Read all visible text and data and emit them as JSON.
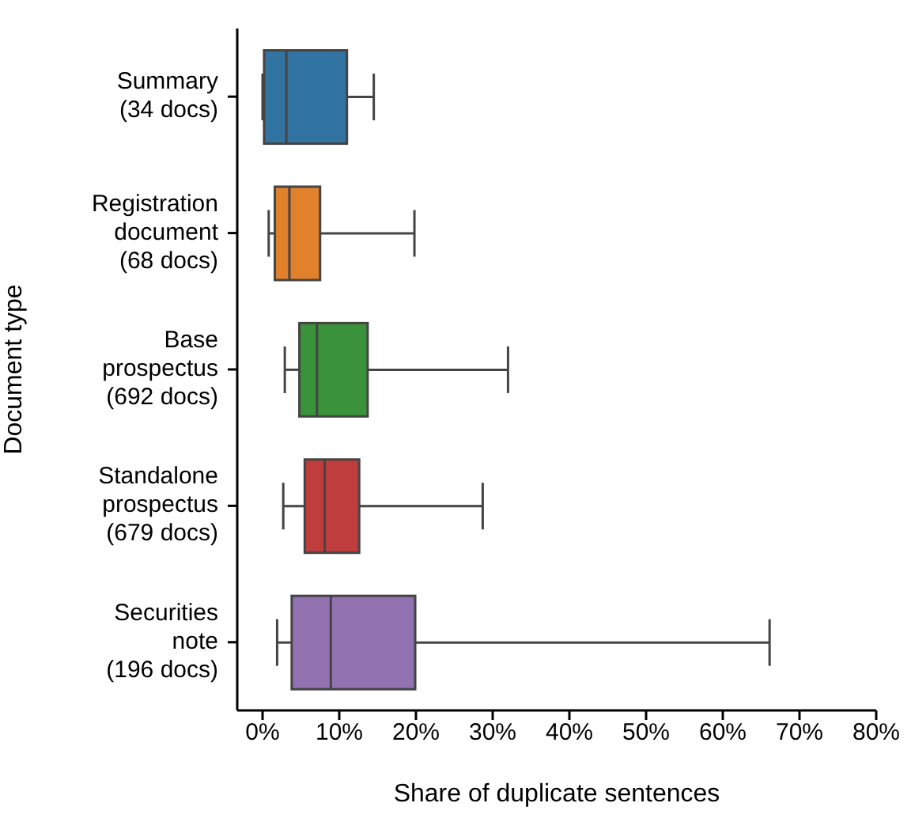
{
  "chart_data": {
    "type": "box",
    "orientation": "horizontal",
    "xlabel": "Share of duplicate sentences",
    "ylabel": "Document type",
    "categories": [
      "Summary\n(34 docs)",
      "Registration\ndocument\n(68 docs)",
      "Base\nprospectus\n(692 docs)",
      "Standalone\nprospectus\n(679 docs)",
      "Securities\nnote\n(196 docs)"
    ],
    "colors": [
      "#3274a1",
      "#e1812c",
      "#3a923a",
      "#c03d3e",
      "#9372b2"
    ],
    "boxes": [
      {
        "low": 0,
        "q1": 0.2,
        "median": 3.1,
        "q3": 11.0,
        "high": 14.5
      },
      {
        "low": 0.8,
        "q1": 1.6,
        "median": 3.5,
        "q3": 7.5,
        "high": 19.8
      },
      {
        "low": 2.9,
        "q1": 4.8,
        "median": 7.1,
        "q3": 13.7,
        "high": 32.0
      },
      {
        "low": 2.7,
        "q1": 5.5,
        "median": 8.1,
        "q3": 12.6,
        "high": 28.7
      },
      {
        "low": 1.9,
        "q1": 3.8,
        "median": 8.9,
        "q3": 19.9,
        "high": 66.1
      }
    ],
    "xlim": [
      -3.3,
      80
    ],
    "xticks": [
      {
        "value": 0,
        "label": "0%"
      },
      {
        "value": 10,
        "label": "10%"
      },
      {
        "value": 20,
        "label": "20%"
      },
      {
        "value": 30,
        "label": "30%"
      },
      {
        "value": 40,
        "label": "40%"
      },
      {
        "value": 50,
        "label": "50%"
      },
      {
        "value": 60,
        "label": "60%"
      },
      {
        "value": 70,
        "label": "70%"
      },
      {
        "value": 80,
        "label": "80%"
      }
    ],
    "grid": false,
    "legend": false
  }
}
